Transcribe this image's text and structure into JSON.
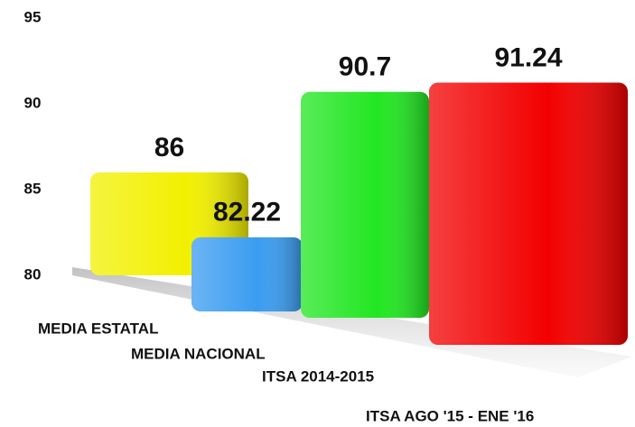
{
  "chart_data": {
    "type": "bar",
    "categories": [
      "MEDIA ESTATAL",
      "MEDIA NACIONAL",
      "ITSA 2014-2015",
      "ITSA AGO '15 - ENE '16"
    ],
    "values": [
      86,
      82.22,
      90.7,
      91.24
    ],
    "colors": [
      "#f2f000",
      "#3a9cf0",
      "#22e622",
      "#f20000"
    ],
    "ylim": [
      80,
      95
    ],
    "yticks": [
      80,
      85,
      90,
      95
    ]
  }
}
